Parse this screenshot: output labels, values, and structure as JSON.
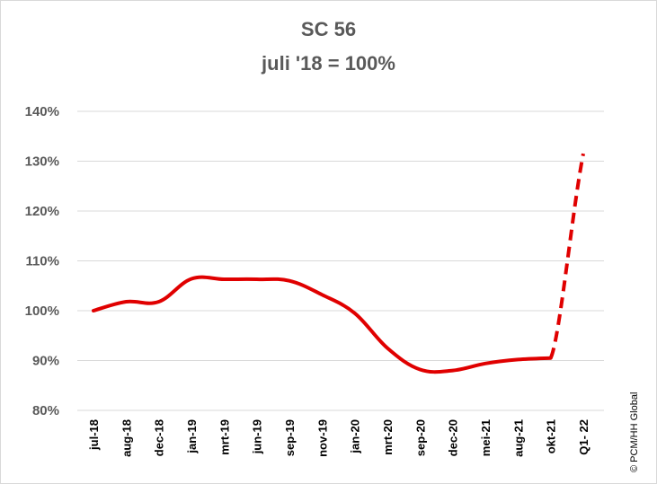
{
  "chart_data": {
    "type": "line",
    "title": "SC 56",
    "subtitle": "juli '18 = 100%",
    "ylim": [
      80,
      140
    ],
    "y_ticks": [
      "80%",
      "90%",
      "100%",
      "110%",
      "120%",
      "130%",
      "140%"
    ],
    "categories": [
      "jul-18",
      "aug-18",
      "dec-18",
      "jan-19",
      "mrt-19",
      "jun-19",
      "sep-19",
      "nov-19",
      "jan-20",
      "mrt-20",
      "sep-20",
      "dec-20",
      "mei-21",
      "aug-21",
      "okt-21",
      "Q1- 22"
    ],
    "series": [
      {
        "values": [
          100,
          101.8,
          101.8,
          106.4,
          106.3,
          106.3,
          106,
          103.2,
          99.5,
          92.5,
          88.2,
          88,
          89.4,
          90.2,
          90.5,
          131.5
        ],
        "color": "#e00000",
        "dashed_from_index": 14
      }
    ],
    "grid": true,
    "legend": "none"
  },
  "credit": "© PCM/HH Global"
}
